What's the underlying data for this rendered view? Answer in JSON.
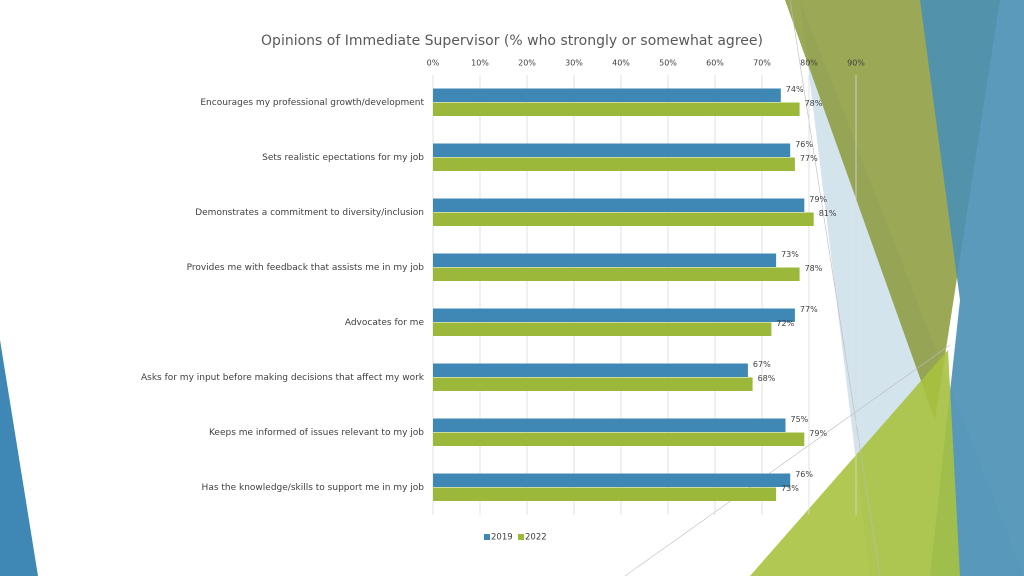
{
  "chart_data": {
    "type": "hbar",
    "title": "Opinions of Immediate Supervisor (% who strongly or somewhat agree)",
    "categories": [
      "Encourages my professional growth/development",
      "Sets realistic epectations for my job",
      "Demonstrates a commitment to diversity/inclusion",
      "Provides me with feedback that assists me in my job",
      "Advocates for me",
      "Asks for my input before making decisions that affect my work",
      "Keeps me informed of issues relevant to my job",
      "Has the knowledge/skills to support me in my job"
    ],
    "series": [
      {
        "name": "2019",
        "color": "#3f87b5",
        "values": [
          74,
          76,
          79,
          73,
          77,
          67,
          75,
          76
        ],
        "value_labels": [
          "74%",
          "76%",
          "79%",
          "73%",
          "77%",
          "67%",
          "75%",
          "76%"
        ]
      },
      {
        "name": "2022",
        "color": "#9cb83a",
        "values": [
          78,
          77,
          81,
          78,
          72,
          68,
          79,
          73
        ],
        "value_labels": [
          "78%",
          "77%",
          "81%",
          "78%",
          "72%",
          "68%",
          "79%",
          "73%"
        ]
      }
    ],
    "xlim": [
      0,
      90
    ],
    "xticks": [
      {
        "value": 0,
        "label": "0%"
      },
      {
        "value": 10,
        "label": "10%"
      },
      {
        "value": 20,
        "label": "20%"
      },
      {
        "value": 30,
        "label": "30%"
      },
      {
        "value": 40,
        "label": "40%"
      },
      {
        "value": 50,
        "label": "50%"
      },
      {
        "value": 60,
        "label": "60%"
      },
      {
        "value": 70,
        "label": "70%"
      },
      {
        "value": 80,
        "label": "80%"
      },
      {
        "value": 90,
        "label": "90%"
      }
    ],
    "grid": true,
    "legend": "bottom"
  }
}
